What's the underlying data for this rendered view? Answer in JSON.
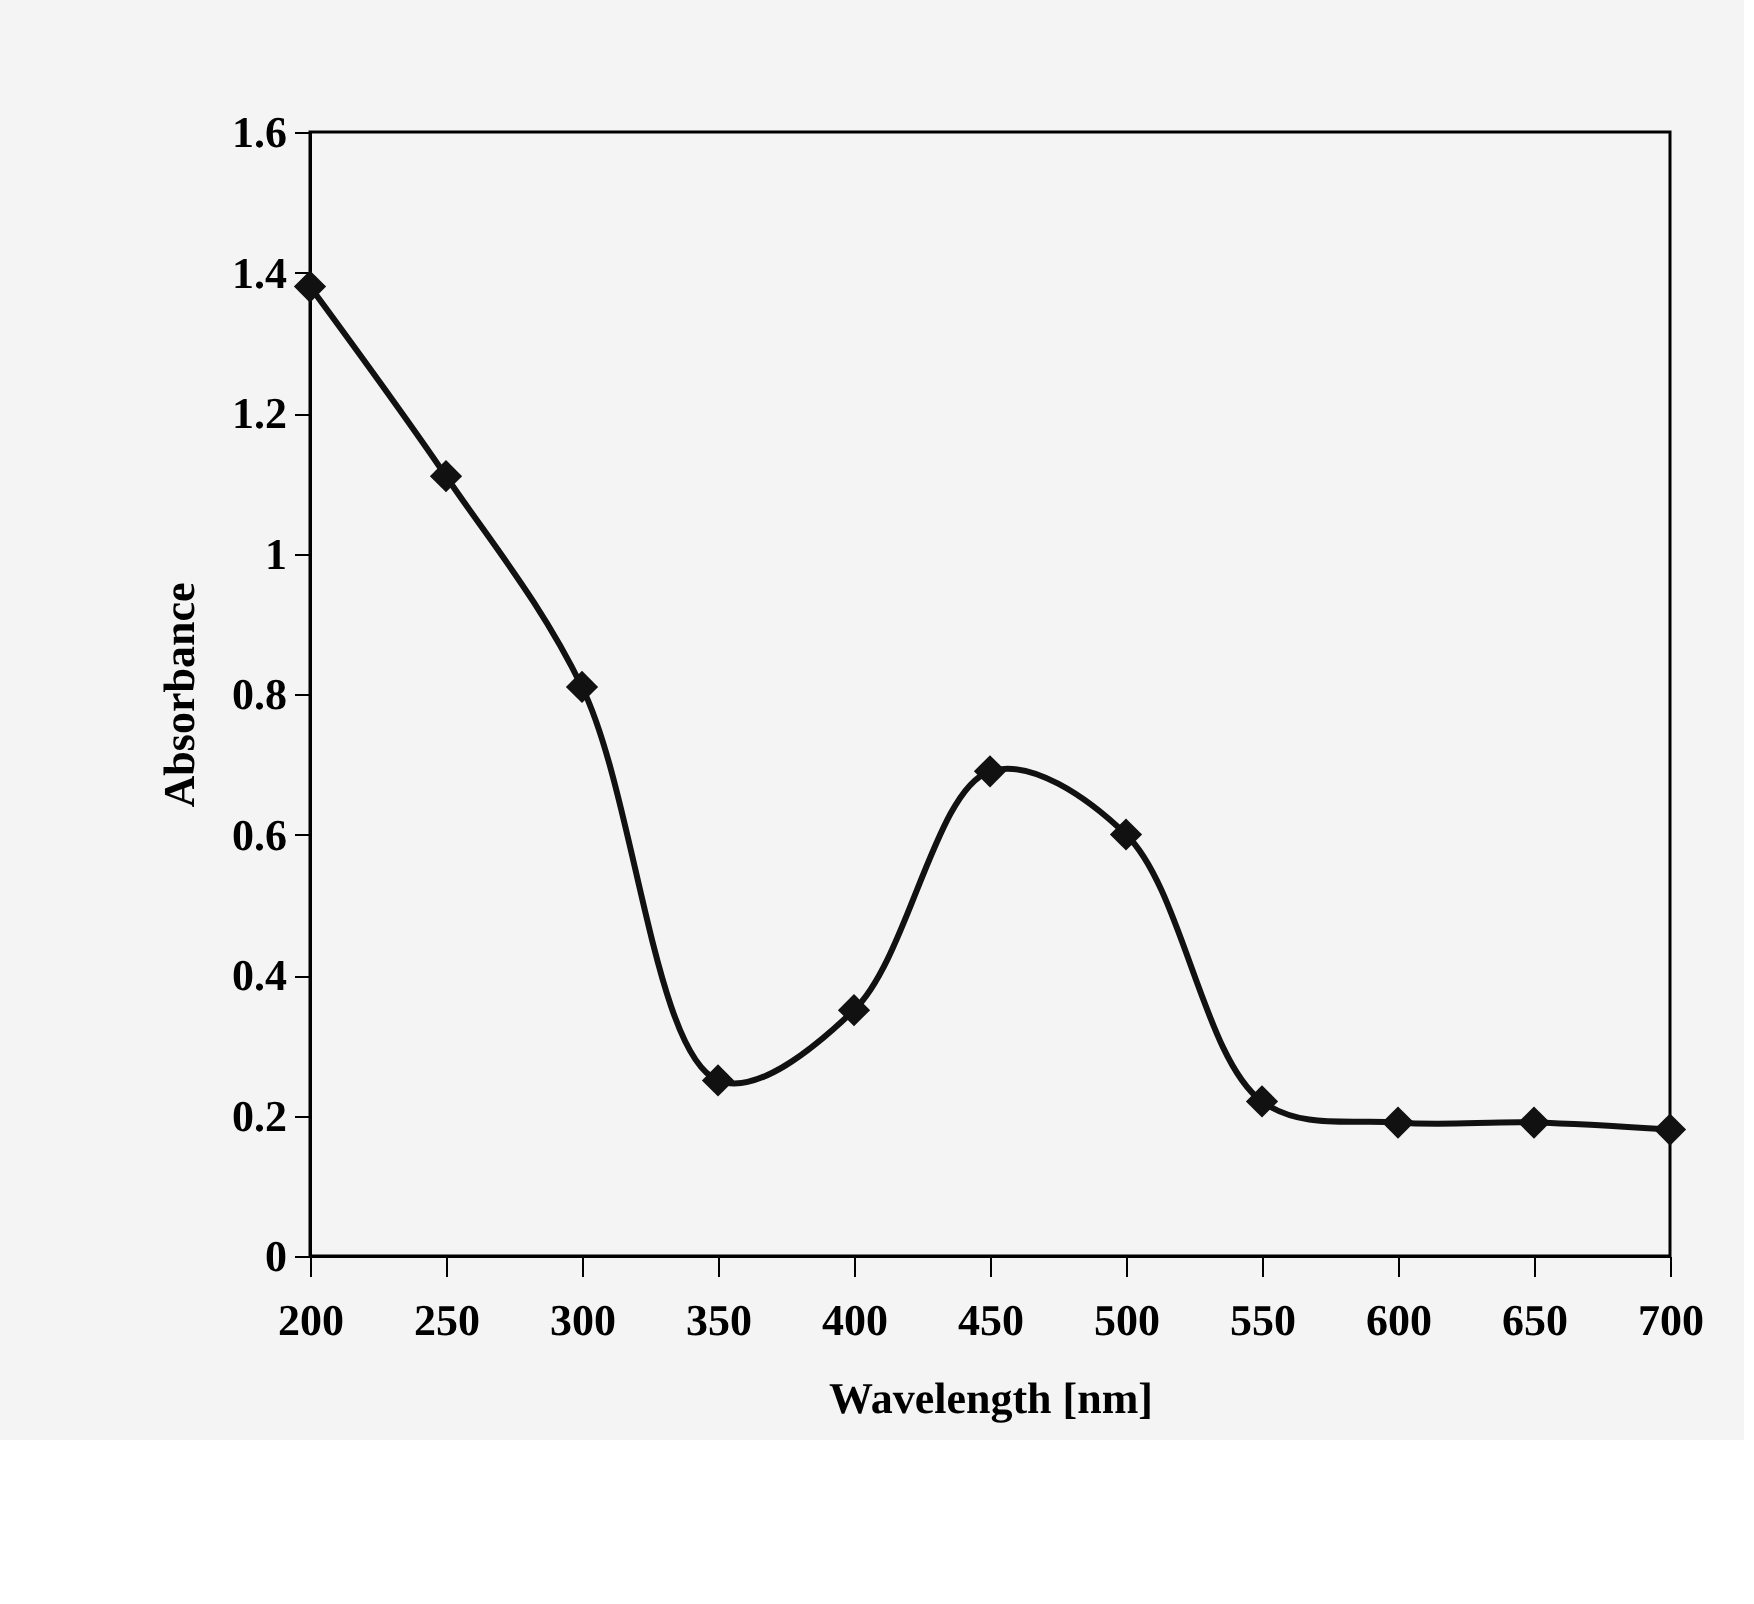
{
  "chart_data": {
    "type": "line",
    "xlabel": "Wavelength [nm]",
    "ylabel": "Absorbance",
    "x": [
      200,
      250,
      300,
      350,
      400,
      450,
      500,
      550,
      600,
      650,
      700
    ],
    "series": [
      {
        "color": "#111111",
        "values": [
          1.38,
          1.11,
          0.81,
          0.25,
          0.35,
          0.69,
          0.6,
          0.22,
          0.19,
          0.19,
          0.18
        ]
      }
    ],
    "xlim": [
      200,
      700
    ],
    "xticks": [
      200,
      250,
      300,
      350,
      400,
      450,
      500,
      550,
      600,
      650,
      700
    ],
    "ylim": [
      0,
      1.6
    ],
    "yticks": [
      0,
      0.2,
      0.4,
      0.6,
      0.8,
      1,
      1.2,
      1.4,
      1.6
    ],
    "marker": "diamond",
    "line_style": "solid",
    "grid": false,
    "legend": false
  }
}
